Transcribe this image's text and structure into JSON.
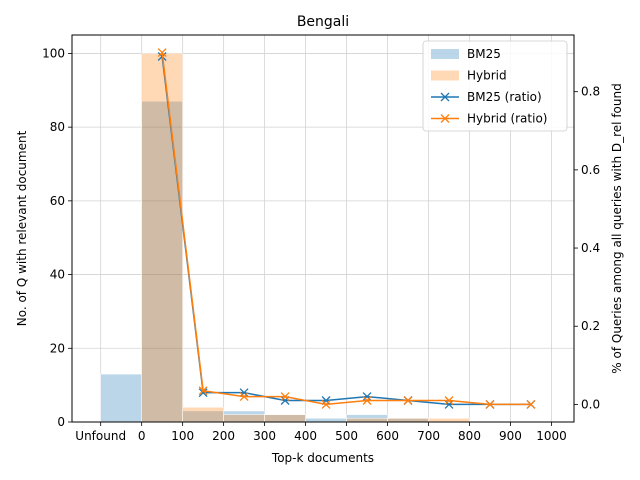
{
  "chart_data": {
    "type": "bar",
    "title": "Bengali",
    "xlabel": "Top-k documents",
    "ylabel": "No. of Q with relevant document",
    "y2label": "% of Queries among all queries with D_rel found",
    "x_tick_labels": [
      "Unfound",
      "0",
      "100",
      "200",
      "300",
      "400",
      "500",
      "600",
      "700",
      "800",
      "900",
      "1000"
    ],
    "x_tick_values": [
      -100,
      0,
      100,
      200,
      300,
      400,
      500,
      600,
      700,
      800,
      900,
      1000
    ],
    "xlim": [
      -170,
      1055
    ],
    "ylim": [
      0,
      105
    ],
    "y_ticks": [
      0,
      20,
      40,
      60,
      80,
      100
    ],
    "y2lim": [
      -0.045,
      0.945
    ],
    "y2_ticks": [
      0.0,
      0.2,
      0.4,
      0.6,
      0.8
    ],
    "y2_tick_labels": [
      "0.0",
      "0.2",
      "0.4",
      "0.6",
      "0.8"
    ],
    "grid": true,
    "legend_position": "top-right",
    "bins": [
      [
        -100,
        0
      ],
      [
        0,
        100
      ],
      [
        100,
        200
      ],
      [
        200,
        300
      ],
      [
        300,
        400
      ],
      [
        400,
        500
      ],
      [
        500,
        600
      ],
      [
        600,
        700
      ],
      [
        700,
        800
      ],
      [
        800,
        900
      ],
      [
        900,
        1000
      ]
    ],
    "bar_series": [
      {
        "name": "BM25",
        "color": "#1f77b4",
        "values": [
          13,
          87,
          3,
          3,
          2,
          1,
          2,
          1,
          0,
          0,
          0
        ]
      },
      {
        "name": "Hybrid",
        "color": "#ff7f0e",
        "values": [
          0,
          100,
          4,
          2,
          2,
          0,
          1,
          1,
          1,
          0,
          0
        ]
      }
    ],
    "line_series": [
      {
        "name": "BM25 (ratio)",
        "color": "#1f77b4",
        "x": [
          50,
          150,
          250,
          350,
          450,
          550,
          650,
          750,
          850,
          950
        ],
        "values": [
          0.89,
          0.03,
          0.03,
          0.01,
          0.01,
          0.02,
          0.01,
          0.0,
          0.0,
          0.0
        ]
      },
      {
        "name": "Hybrid (ratio)",
        "color": "#ff7f0e",
        "x": [
          50,
          150,
          250,
          350,
          450,
          550,
          650,
          750,
          850,
          950
        ],
        "values": [
          0.9,
          0.035,
          0.02,
          0.02,
          0.0,
          0.01,
          0.01,
          0.01,
          0.0,
          0.0
        ]
      }
    ]
  }
}
